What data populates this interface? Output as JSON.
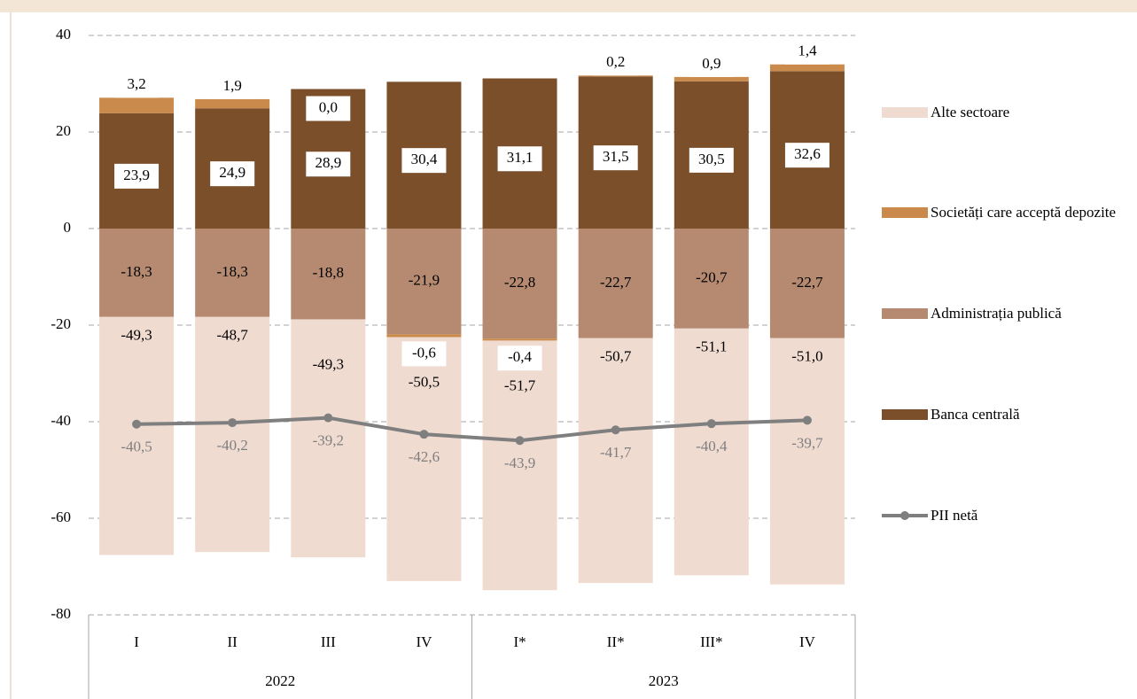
{
  "chart_data": {
    "type": "stacked-bar-line",
    "categories": [
      "I",
      "II",
      "III",
      "IV",
      "I*",
      "II*",
      "III*",
      "IV"
    ],
    "years": [
      "2022",
      "2023"
    ],
    "ylim": [
      -80,
      40
    ],
    "yticks": [
      -80,
      -60,
      -40,
      -20,
      0,
      20,
      40
    ],
    "grid": true,
    "legend": "right",
    "series": [
      {
        "name": "Alte sectoare",
        "color": "#f0dbd1",
        "kind": "bar",
        "values": [
          -49.3,
          -48.7,
          -49.3,
          -50.5,
          -51.7,
          -50.7,
          -51.1,
          -51.0
        ],
        "value_labels": [
          "-49,3",
          "-48,7",
          "-49,3",
          "-50,5",
          "-51,7",
          "-50,7",
          "-51,1",
          "-51,0"
        ]
      },
      {
        "name": "Societăți care acceptă depozite",
        "color": "#c98a4b",
        "kind": "bar",
        "values": [
          3.2,
          1.9,
          0.0,
          -0.6,
          -0.4,
          0.2,
          0.9,
          1.4
        ],
        "value_labels": [
          "3,2",
          "1,9",
          "0,0",
          "-0,6",
          "-0,4",
          "0,2",
          "0,9",
          "1,4"
        ]
      },
      {
        "name": "Administrația publică",
        "color": "#b58a71",
        "kind": "bar",
        "values": [
          -18.3,
          -18.3,
          -18.8,
          -21.9,
          -22.8,
          -22.7,
          -20.7,
          -22.7
        ],
        "value_labels": [
          "-18,3",
          "-18,3",
          "-18,8",
          "-21,9",
          "-22,8",
          "-22,7",
          "-20,7",
          "-22,7"
        ]
      },
      {
        "name": "Banca centrală",
        "color": "#7a4f2a",
        "kind": "bar",
        "values": [
          23.9,
          24.9,
          28.9,
          30.4,
          31.1,
          31.5,
          30.5,
          32.6
        ],
        "value_labels": [
          "23,9",
          "24,9",
          "28,9",
          "30,4",
          "31,1",
          "31,5",
          "30,5",
          "32,6"
        ]
      },
      {
        "name": "PII netă",
        "color": "#7f7f7f",
        "kind": "line",
        "values": [
          -40.5,
          -40.2,
          -39.2,
          -42.6,
          -43.9,
          -41.7,
          -40.4,
          -39.7
        ],
        "value_labels": [
          "-40,5",
          "-40,2",
          "-39,2",
          "-42,6",
          "-43,9",
          "-41,7",
          "-40,4",
          "-39,7"
        ]
      }
    ]
  }
}
